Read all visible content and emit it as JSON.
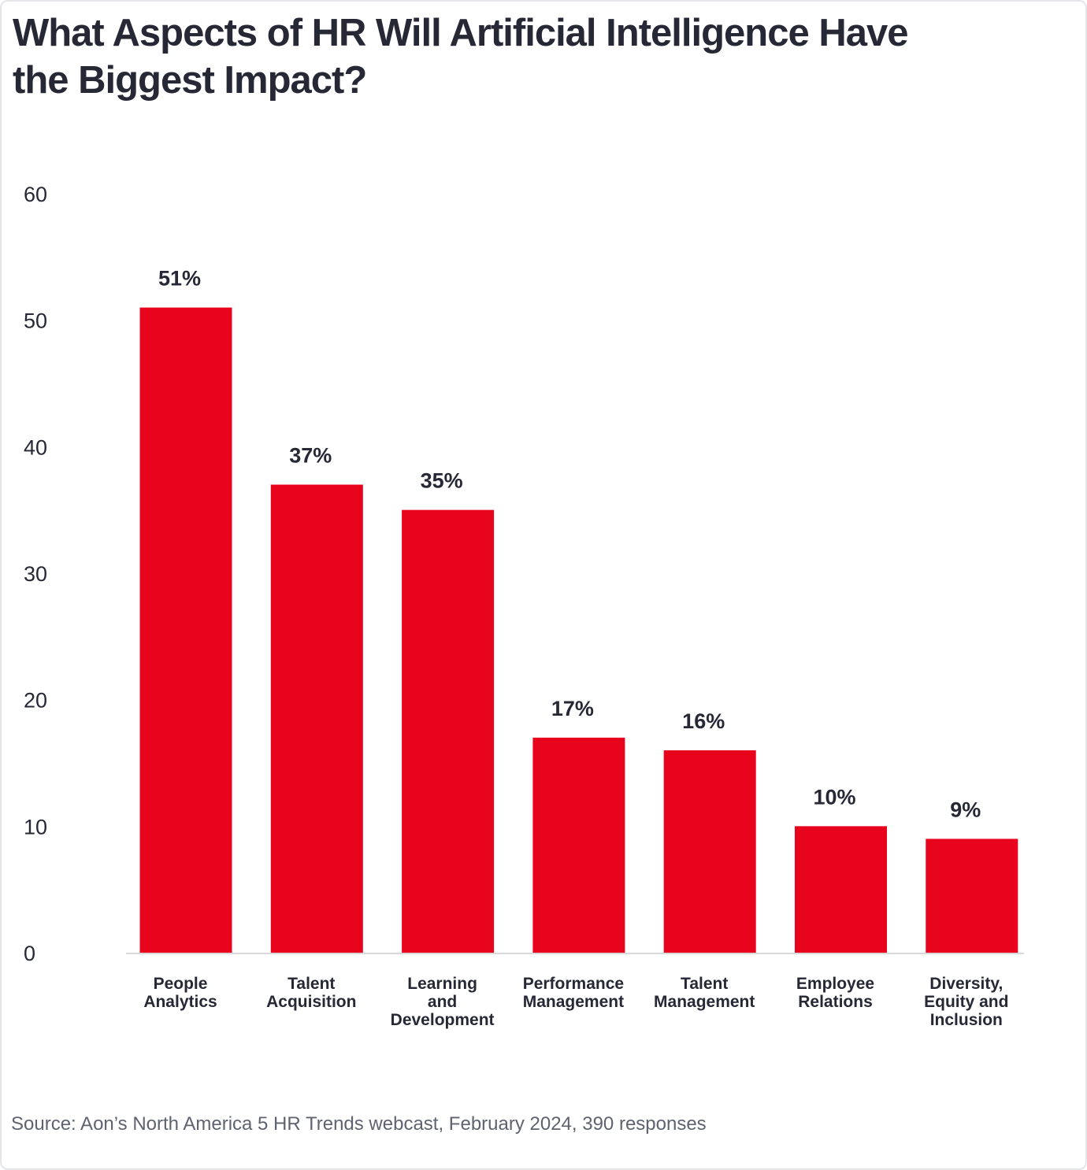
{
  "chart_data": {
    "type": "bar",
    "title": "What Aspects of HR Will Artificial Intelligence Have the Biggest Impact?",
    "categories": [
      [
        "People",
        "Analytics"
      ],
      [
        "Talent",
        "Acquisition"
      ],
      [
        "Learning",
        "and",
        "Development"
      ],
      [
        "Performance",
        "Management"
      ],
      [
        "Talent",
        "Management"
      ],
      [
        "Employee",
        "Relations"
      ],
      [
        "Diversity,",
        "Equity and",
        "Inclusion"
      ]
    ],
    "values": [
      51,
      37,
      35,
      17,
      16,
      10,
      9
    ],
    "data_labels": [
      "51%",
      "37%",
      "35%",
      "17%",
      "16%",
      "10%",
      "9%"
    ],
    "yticks": [
      0,
      10,
      20,
      30,
      40,
      50,
      60
    ],
    "ylim": [
      0,
      60
    ],
    "grid": false,
    "bar_color": "#e8041c",
    "source": "Source: Aon’s North America 5 HR Trends webcast, February 2024, 390 responses"
  }
}
